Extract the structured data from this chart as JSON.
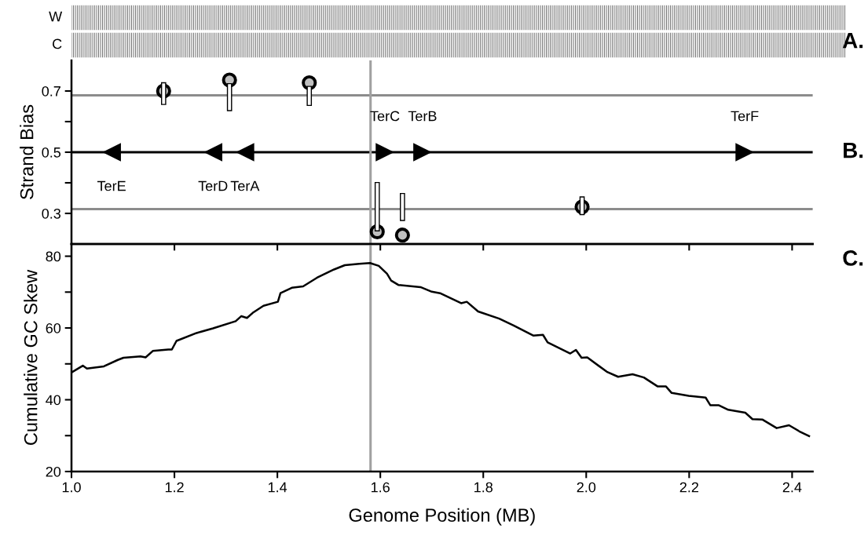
{
  "chart_data": [
    {
      "type": "other",
      "y_categories": [
        "W",
        "C"
      ],
      "annotations": [
        "A."
      ]
    },
    {
      "type": "scatter",
      "ylabel": "Strand Bias",
      "xlim": [
        1.0,
        2.44
      ],
      "ylim": [
        0.2,
        0.8
      ],
      "xticks": [
        1.0,
        1.2,
        1.4,
        1.6,
        1.8,
        2.0,
        2.2,
        2.4
      ],
      "yticks": [
        0.3,
        {
          "value": 0.4,
          "label": null
        },
        0.5,
        {
          "value": 0.6,
          "label": null
        },
        0.7
      ],
      "tick_labels": "y",
      "grid": false,
      "legend": false,
      "series": [
        {
          "type": "bar",
          "color": "#ffffff",
          "x": [
            1.179,
            1.307,
            1.462,
            1.594,
            1.643,
            1.992
          ],
          "base": [
            0.656,
            0.636,
            0.653,
            0.243,
            0.277,
            0.296
          ],
          "values": [
            0.071,
            0.088,
            0.062,
            0.158,
            0.088,
            0.058
          ]
        },
        {
          "type": "scatter",
          "color": "#c0c0c0",
          "marker": "circle",
          "x": [
            1.179,
            1.307,
            1.462,
            1.594,
            1.643,
            1.992
          ],
          "values": [
            0.7,
            0.736,
            0.727,
            0.24,
            0.229,
            0.321
          ]
        },
        {
          "type": "scatter",
          "color": "#000000",
          "marker": "triangle-left",
          "x": [
            1.078,
            1.275,
            1.337
          ],
          "values": [
            0.5,
            0.5,
            0.5
          ],
          "value_labels": [
            "TerE",
            "TerD",
            "TerA"
          ]
        },
        {
          "type": "scatter",
          "color": "#000000",
          "marker": "triangle-right",
          "x": [
            1.609,
            1.682,
            2.308
          ],
          "values": [
            0.5,
            0.5,
            0.5
          ],
          "value_labels": [
            "TerC",
            "TerB",
            "TerF"
          ]
        }
      ],
      "ref_lines": [
        {
          "axis": "y",
          "value": 0.686,
          "color": "#8c8c8c"
        },
        {
          "axis": "y",
          "value": 0.314,
          "color": "#8c8c8c"
        },
        {
          "axis": "y",
          "value": 0.5,
          "color": "#000000"
        },
        {
          "axis": "x",
          "value": 1.581,
          "color": "#a0a0a0"
        }
      ],
      "annotations": [
        "B."
      ]
    },
    {
      "type": "line",
      "xlabel": "Genome Position (MB)",
      "ylabel": "Cumulative GC Skew",
      "xlim": [
        1.0,
        2.44
      ],
      "ylim": [
        20,
        83.4
      ],
      "xticks": [
        {
          "value": 1.0,
          "label": "1.0"
        },
        {
          "value": 1.2,
          "label": "1.2"
        },
        {
          "value": 1.4,
          "label": "1.4"
        },
        {
          "value": 1.6,
          "label": "1.6"
        },
        {
          "value": 1.8,
          "label": "1.8"
        },
        {
          "value": 2.0,
          "label": "2.0"
        },
        {
          "value": 2.2,
          "label": "2.2"
        },
        {
          "value": 2.4,
          "label": "2.4"
        }
      ],
      "yticks": [
        20,
        {
          "value": 30,
          "label": null
        },
        40,
        {
          "value": 50,
          "label": null
        },
        60,
        {
          "value": 70,
          "label": null
        },
        80
      ],
      "grid": false,
      "legend": false,
      "marker": "none",
      "line_style": "solid",
      "series": [
        {
          "color": "#000000",
          "x": [
            1.0,
            1.022,
            1.03,
            1.063,
            1.09,
            1.101,
            1.134,
            1.144,
            1.158,
            1.188,
            1.195,
            1.204,
            1.243,
            1.275,
            1.319,
            1.33,
            1.341,
            1.352,
            1.373,
            1.401,
            1.406,
            1.428,
            1.45,
            1.477,
            1.51,
            1.531,
            1.559,
            1.58,
            1.597,
            1.613,
            1.621,
            1.635,
            1.678,
            1.7,
            1.716,
            1.757,
            1.768,
            1.79,
            1.831,
            1.859,
            1.897,
            1.916,
            1.925,
            1.969,
            1.98,
            1.991,
            2.002,
            2.04,
            2.062,
            2.09,
            2.112,
            2.139,
            2.155,
            2.166,
            2.199,
            2.232,
            2.241,
            2.257,
            2.276,
            2.309,
            2.323,
            2.342,
            2.37,
            2.394,
            2.414,
            2.433
          ],
          "values": [
            47.6,
            49.5,
            48.7,
            49.3,
            51.1,
            51.7,
            52.1,
            51.8,
            53.6,
            54.0,
            54.0,
            56.4,
            58.6,
            59.9,
            61.9,
            63.3,
            62.8,
            64.2,
            66.2,
            67.3,
            69.7,
            71.2,
            71.6,
            74.0,
            76.3,
            77.5,
            77.9,
            78.1,
            77.3,
            75.1,
            73.2,
            72.0,
            71.4,
            70.1,
            69.7,
            66.9,
            67.3,
            64.6,
            62.6,
            60.7,
            57.9,
            58.1,
            56.0,
            52.9,
            53.9,
            51.7,
            51.8,
            47.8,
            46.4,
            47.1,
            46.2,
            43.7,
            43.7,
            41.9,
            41.1,
            40.6,
            38.5,
            38.5,
            37.2,
            36.4,
            34.6,
            34.5,
            32.1,
            32.9,
            31.2,
            29.9
          ]
        }
      ],
      "ref_lines": [
        {
          "axis": "x",
          "value": 1.581,
          "color": "#a0a0a0"
        }
      ],
      "annotations": [
        "C."
      ]
    }
  ]
}
